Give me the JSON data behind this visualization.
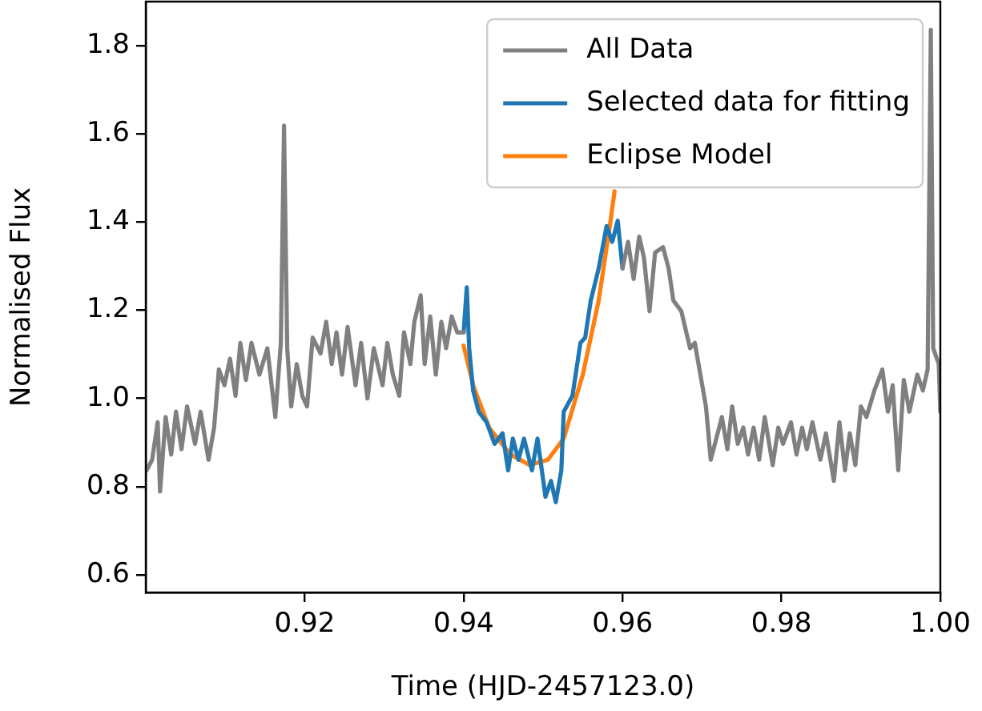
{
  "chart_data": {
    "type": "line",
    "xlabel": "Time (HJD-2457123.0)",
    "ylabel": "Normalised Flux",
    "xlim": [
      0.9,
      1.0
    ],
    "ylim": [
      0.56,
      1.9
    ],
    "xticks": [
      0.92,
      0.94,
      0.96,
      0.98,
      {
        "value": 1.0,
        "label": "1.00"
      }
    ],
    "yticks": [
      0.6,
      0.8,
      {
        "value": 1,
        "label": "1.0"
      },
      1.2,
      1.4,
      1.6,
      1.8
    ],
    "legend": "top right",
    "series": [
      {
        "name": "All Data",
        "color": "#808080",
        "x": [
          0.9001,
          0.9008,
          0.9015,
          0.9018,
          0.9025,
          0.9032,
          0.9038,
          0.9045,
          0.9052,
          0.9062,
          0.9069,
          0.9079,
          0.9086,
          0.9092,
          0.9099,
          0.9106,
          0.9113,
          0.9119,
          0.9126,
          0.9133,
          0.9143,
          0.9153,
          0.9163,
          0.917,
          0.9174,
          0.9178,
          0.9183,
          0.919,
          0.9197,
          0.9203,
          0.921,
          0.922,
          0.9227,
          0.9234,
          0.924,
          0.9247,
          0.9254,
          0.9264,
          0.9271,
          0.9279,
          0.9287,
          0.9298,
          0.9304,
          0.9311,
          0.9319,
          0.9325,
          0.9333,
          0.9338,
          0.9346,
          0.9351,
          0.9358,
          0.9365,
          0.9372,
          0.9378,
          0.9385,
          0.9392,
          0.9399,
          0.94,
          0.95,
          0.96,
          0.9607,
          0.9614,
          0.9621,
          0.9627,
          0.9634,
          0.9641,
          0.9651,
          0.9658,
          0.9664,
          0.9674,
          0.9685,
          0.9691,
          0.9698,
          0.9705,
          0.9711,
          0.9718,
          0.9725,
          0.9732,
          0.9738,
          0.9745,
          0.9752,
          0.9758,
          0.9765,
          0.9772,
          0.9779,
          0.9789,
          0.9796,
          0.9802,
          0.9812,
          0.9819,
          0.9826,
          0.9832,
          0.9839,
          0.9849,
          0.9856,
          0.9866,
          0.9873,
          0.988,
          0.9886,
          0.9893,
          0.99,
          0.9907,
          0.9917,
          0.9927,
          0.9934,
          0.994,
          0.9947,
          0.9954,
          0.9961,
          0.9971,
          0.9978,
          0.9984,
          0.9988,
          0.9991,
          0.9998,
          1.0
        ],
        "values": [
          0.837,
          0.861,
          0.946,
          0.789,
          0.958,
          0.873,
          0.97,
          0.885,
          0.982,
          0.897,
          0.97,
          0.861,
          0.934,
          1.066,
          1.03,
          1.09,
          1.006,
          1.126,
          1.042,
          1.126,
          1.054,
          1.114,
          0.958,
          1.126,
          1.619,
          1.114,
          0.982,
          1.078,
          1.006,
          0.982,
          1.138,
          1.102,
          1.174,
          1.078,
          1.15,
          1.054,
          1.162,
          1.03,
          1.126,
          1.0,
          1.114,
          1.03,
          1.126,
          1.054,
          1.006,
          1.15,
          1.078,
          1.174,
          1.234,
          1.078,
          1.186,
          1.054,
          1.174,
          1.114,
          1.186,
          1.15,
          1.15,
          1.15,
          null,
          1.295,
          1.355,
          1.271,
          1.367,
          1.319,
          1.198,
          1.331,
          1.343,
          1.295,
          1.222,
          1.198,
          1.114,
          1.126,
          1.054,
          0.982,
          0.861,
          0.909,
          0.958,
          0.885,
          0.982,
          0.897,
          0.934,
          0.873,
          0.934,
          0.861,
          0.958,
          0.849,
          0.934,
          0.897,
          0.946,
          0.873,
          0.934,
          0.885,
          0.946,
          0.861,
          0.921,
          0.813,
          0.946,
          0.837,
          0.921,
          0.849,
          0.982,
          0.958,
          1.018,
          1.066,
          0.97,
          1.03,
          0.837,
          1.042,
          0.97,
          1.054,
          1.018,
          1.066,
          1.836,
          1.114,
          1.078,
          0.97
        ]
      },
      {
        "name": "Selected data for fitting",
        "color": "#1f77b4",
        "x": [
          0.94,
          0.9404,
          0.9407,
          0.9412,
          0.9419,
          0.9429,
          0.9439,
          0.9449,
          0.9456,
          0.9462,
          0.9469,
          0.9476,
          0.9486,
          0.9493,
          0.9503,
          0.951,
          0.9516,
          0.9523,
          0.9526,
          0.9537,
          0.9547,
          0.9553,
          0.956,
          0.957,
          0.958,
          0.9587,
          0.9594,
          0.96
        ],
        "values": [
          1.15,
          1.252,
          1.114,
          1.018,
          0.97,
          0.946,
          0.897,
          0.921,
          0.837,
          0.909,
          0.861,
          0.909,
          0.837,
          0.909,
          0.777,
          0.813,
          0.765,
          0.837,
          0.97,
          1.006,
          1.126,
          1.138,
          1.222,
          1.295,
          1.391,
          1.355,
          1.403,
          1.295
        ]
      },
      {
        "name": "Eclipse Model",
        "color": "#ff7f0e",
        "x": [
          0.94,
          0.9412,
          0.9432,
          0.9459,
          0.9483,
          0.9506,
          0.9526,
          0.955,
          0.957,
          0.9584,
          0.959
        ],
        "values": [
          1.12,
          1.03,
          0.934,
          0.873,
          0.849,
          0.861,
          0.909,
          1.054,
          1.222,
          1.391,
          1.47
        ]
      }
    ]
  }
}
